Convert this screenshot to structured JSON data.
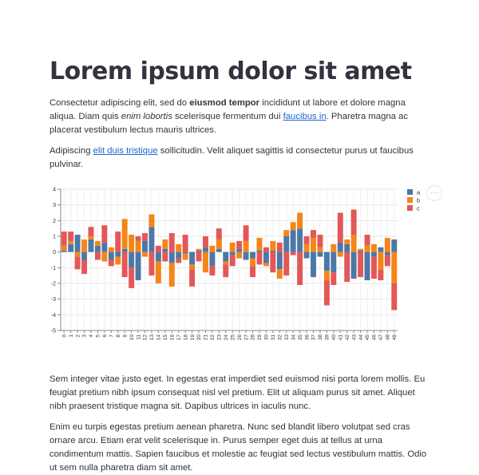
{
  "title": "Lorem ipsum dolor sit amet",
  "p1": {
    "a": "Consectetur adipiscing elit, sed do ",
    "bold": "eiusmod tempor",
    "b": " incididunt ut labore et dolore magna aliqua. Diam quis ",
    "italic": "enim lobortis",
    "c": " scelerisque fermentum dui ",
    "link": "faucibus in",
    "d": ". Pharetra magna ac placerat vestibulum lectus mauris ultrices."
  },
  "p2": {
    "a": "Adipiscing ",
    "link": "elit duis tristique",
    "b": " sollicitudin. Velit aliquet sagittis id consectetur purus ut faucibus pulvinar."
  },
  "p3": "Sem integer vitae justo eget. In egestas erat imperdiet sed euismod nisi porta lorem mollis. Eu feugiat pretium nibh ipsum consequat nisl vel pretium. Elit ut aliquam purus sit amet. Aliquet nibh praesent tristique magna sit. Dapibus ultrices in iaculis nunc.",
  "p4": "Enim eu turpis egestas pretium aenean pharetra. Nunc sed blandit libero volutpat sed cras ornare arcu. Etiam erat velit scelerisque in. Purus semper eget duis at tellus at urna condimentum mattis. Sapien faucibus et molestie ac feugiat sed lectus vestibulum mattis. Odio ut sem nulla pharetra diam sit amet.",
  "toolbar": {
    "menu_icon": "more-horizontal-icon",
    "menu_label": "···"
  },
  "colors": {
    "a": "#4c78a8",
    "b": "#f58518",
    "c": "#e45756",
    "link": "#1c66c7"
  },
  "chart_data": {
    "type": "bar",
    "stacked": true,
    "x": [
      0,
      1,
      2,
      3,
      4,
      5,
      6,
      7,
      8,
      9,
      10,
      11,
      12,
      13,
      14,
      15,
      16,
      17,
      18,
      19,
      20,
      21,
      22,
      23,
      24,
      25,
      26,
      27,
      28,
      29,
      30,
      31,
      32,
      33,
      34,
      35,
      36,
      37,
      38,
      39,
      40,
      41,
      42,
      43,
      44,
      45,
      46,
      47,
      48,
      49
    ],
    "series": [
      {
        "name": "a",
        "values": [
          0.1,
          0.5,
          1.1,
          -0.5,
          0.8,
          0.4,
          0.6,
          -0.5,
          -0.3,
          0.2,
          -1.0,
          -1.8,
          0.7,
          1.6,
          -0.6,
          0.2,
          -0.7,
          -0.4,
          -0.1,
          -0.8,
          0.1,
          0.3,
          -0.9,
          0.2,
          -0.6,
          -0.2,
          0.2,
          -0.5,
          -0.4,
          0.1,
          -0.7,
          0.1,
          -1.1,
          1.0,
          1.4,
          1.5,
          -0.4,
          -1.6,
          -0.3,
          -1.2,
          -1.3,
          0.6,
          0.5,
          -1.7,
          0.1,
          -1.8,
          -0.3,
          0.3,
          -0.2,
          0.8
        ]
      },
      {
        "name": "b",
        "values": [
          0.3,
          0.2,
          -0.3,
          0.8,
          0.2,
          0.3,
          -0.6,
          0.3,
          -0.5,
          1.9,
          1.1,
          0.7,
          -0.3,
          0.8,
          -1.4,
          0.6,
          -1.5,
          0.5,
          -0.4,
          -0.3,
          0.1,
          -1.3,
          0.4,
          0.6,
          -0.2,
          0.6,
          -0.4,
          0.7,
          -0.5,
          0.8,
          -0.2,
          0.6,
          -0.6,
          0.4,
          0.5,
          1.0,
          0.5,
          0.9,
          0.3,
          -0.6,
          0.5,
          -0.3,
          0.3,
          1.1,
          0.1,
          0.4,
          0.5,
          -1.1,
          0.9,
          -2.0
        ]
      },
      {
        "name": "c",
        "values": [
          0.9,
          0.6,
          -0.8,
          -0.9,
          0.6,
          -0.5,
          1.1,
          -0.4,
          1.3,
          -1.6,
          -1.3,
          0.3,
          0.5,
          -1.5,
          0.4,
          -0.6,
          1.2,
          -0.3,
          1.1,
          -1.1,
          -0.6,
          0.7,
          -0.6,
          0.7,
          -0.8,
          -0.7,
          0.5,
          1.0,
          -0.7,
          -0.8,
          0.3,
          -1.3,
          0.6,
          -1.5,
          -0.2,
          -2.1,
          0.5,
          0.5,
          0.8,
          -1.6,
          -0.8,
          1.9,
          -1.9,
          1.6,
          -1.6,
          0.7,
          -1.4,
          -0.7,
          -0.7,
          -1.7
        ]
      }
    ],
    "ylim": [
      -5,
      4
    ],
    "yticks": [
      -5,
      -4,
      -3,
      -2,
      -1,
      0,
      1,
      2,
      3,
      4
    ],
    "grid": true,
    "legend": "top-right"
  }
}
